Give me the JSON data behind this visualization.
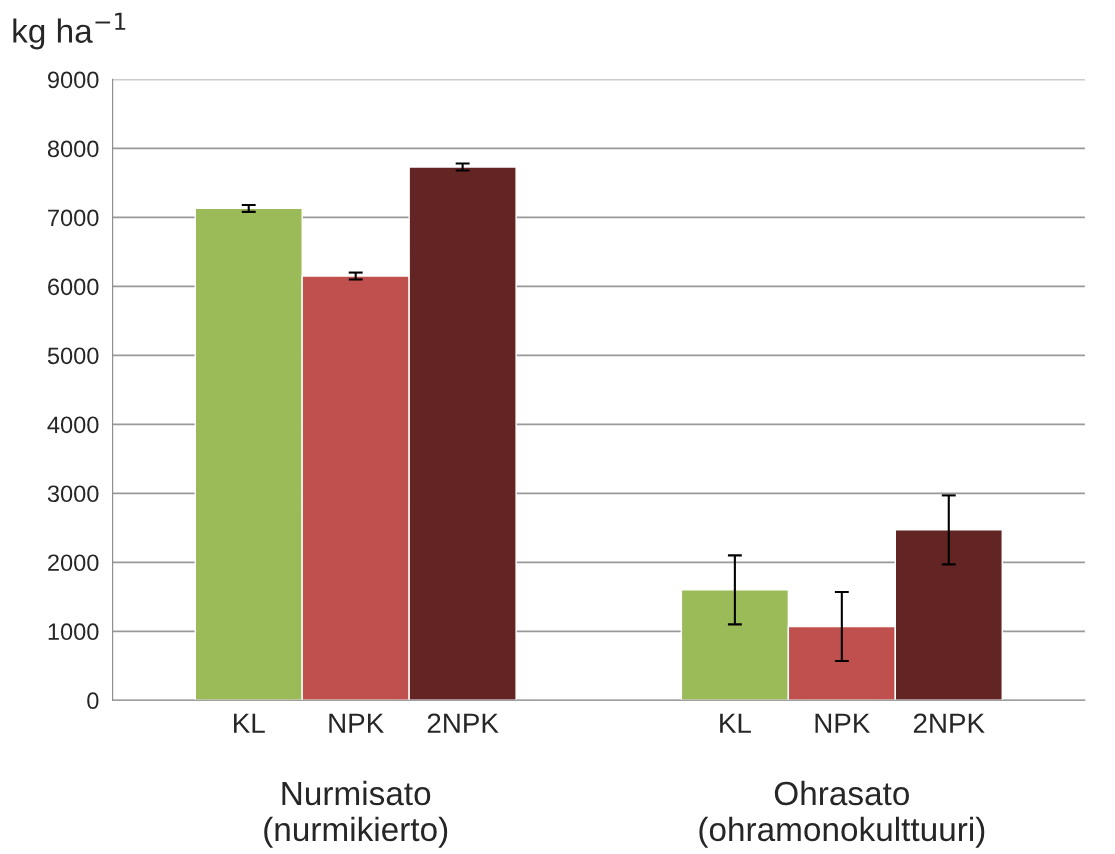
{
  "chart_data": {
    "type": "bar",
    "ylabel": "kg ha$^{−1}$",
    "categories": [
      "Nurmisato\n(nurmikierto)",
      "Ohrasato\n(ohramonokulttuuri)"
    ],
    "series": [
      {
        "name": "KL",
        "color": "#9bbb59",
        "values": [
          7130,
          1600
        ],
        "errors": [
          50,
          500
        ]
      },
      {
        "name": "NPK",
        "color": "#c0504d",
        "values": [
          6150,
          1070
        ],
        "errors": [
          50,
          500
        ]
      },
      {
        "name": "2NPK",
        "color": "#632523",
        "values": [
          7730,
          2470
        ],
        "errors": [
          50,
          500
        ]
      }
    ],
    "ylim": [
      0,
      9000
    ],
    "yticks": [
      0,
      1000,
      2000,
      3000,
      4000,
      5000,
      6000,
      7000,
      8000,
      9000
    ],
    "grid": "y",
    "legend": false
  }
}
